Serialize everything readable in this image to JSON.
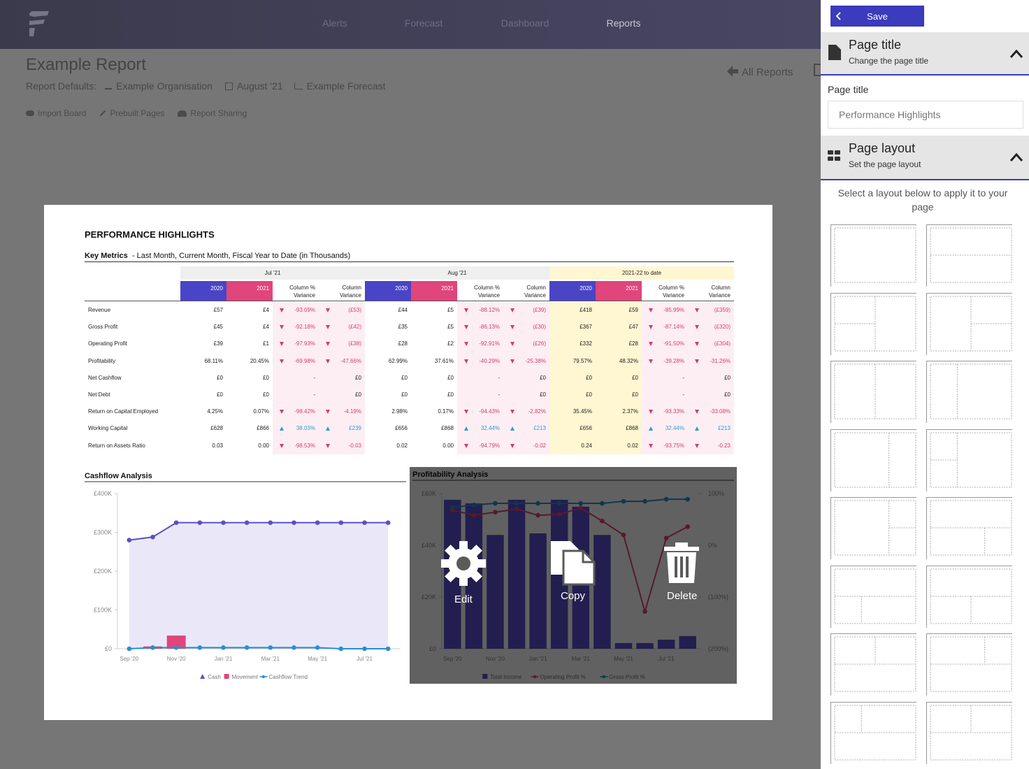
{
  "nav": {
    "items": [
      "Alerts",
      "Forecast",
      "Dashboard",
      "Reports"
    ]
  },
  "header": {
    "title": "Example Report",
    "defaults_label": "Report Defaults:",
    "defaults": [
      "Example Organisation",
      "August '21",
      "Example Forecast"
    ],
    "actions": [
      "Import Board",
      "Prebuilt Pages",
      "Report Sharing"
    ],
    "back": "All Reports"
  },
  "report": {
    "title": "PERFORMANCE HIGHLIGHTS",
    "metrics_title": "Key Metrics",
    "metrics_subtitle": "- Last Month, Current Month, Fiscal Year to Date (in Thousands)",
    "table": {
      "groups": [
        "Jul '21",
        "Aug '21",
        "2021-22 to date"
      ],
      "columns": [
        "2020",
        "2021",
        "Column % Variance",
        "Column Variance"
      ],
      "rows": [
        {
          "label": "Revenue",
          "cells": [
            "£57",
            "£4",
            "-93.09%",
            "(£53)",
            "£44",
            "£5",
            "-88.12%",
            "(£39)",
            "£418",
            "£59",
            "-85.99%",
            "(£359)"
          ]
        },
        {
          "label": "Gross Profit",
          "cells": [
            "£45",
            "£4",
            "-92.18%",
            "(£42)",
            "£35",
            "£5",
            "-86.13%",
            "(£30)",
            "£367",
            "£47",
            "-87.14%",
            "(£320)"
          ]
        },
        {
          "label": "Operating Profit",
          "cells": [
            "£39",
            "£1",
            "-97.93%",
            "(£38)",
            "£28",
            "£2",
            "-92.91%",
            "(£26)",
            "£332",
            "£28",
            "-91.50%",
            "(£304)"
          ]
        },
        {
          "label": "Profitability",
          "cells": [
            "68.11%",
            "20.45%",
            "-69.98%",
            "-47.66%",
            "62.99%",
            "37.61%",
            "-40.29%",
            "-25.38%",
            "79.57%",
            "48.32%",
            "-39.28%",
            "-31.26%"
          ]
        },
        {
          "label": "Net Cashflow",
          "cells": [
            "£0",
            "£0",
            "-",
            "£0",
            "£0",
            "£0",
            "-",
            "£0",
            "£0",
            "£0",
            "-",
            "£0"
          ]
        },
        {
          "label": "Net Debt",
          "cells": [
            "£0",
            "£0",
            "-",
            "£0",
            "£0",
            "£0",
            "-",
            "£0",
            "£0",
            "£0",
            "-",
            "£0"
          ]
        },
        {
          "label": "Return on Capital Employed",
          "cells": [
            "4.25%",
            "0.07%",
            "-98.42%",
            "-4.19%",
            "2.98%",
            "0.17%",
            "-94.43%",
            "-2.82%",
            "35.45%",
            "2.37%",
            "-93.33%",
            "-33.08%"
          ]
        },
        {
          "label": "Working Capital",
          "cells": [
            "£628",
            "£866",
            "38.03%",
            "£239",
            "£656",
            "£868",
            "32.44%",
            "£213",
            "£656",
            "£868",
            "32.44%",
            "£213"
          ]
        },
        {
          "label": "Return on Assets Ratio",
          "cells": [
            "0.03",
            "0.00",
            "-98.53%",
            "-0.03",
            "0.02",
            "0.00",
            "-94.79%",
            "-0.02",
            "0.24",
            "0.02",
            "-93.75%",
            "-0.23"
          ]
        }
      ]
    }
  },
  "chart_data": [
    {
      "type": "combo",
      "title": "Cashflow Analysis",
      "categories": [
        "Sep '20",
        null,
        "Nov '20",
        null,
        "Jan '21",
        null,
        "Mar '21",
        null,
        "May '21",
        null,
        "Jul '21",
        null
      ],
      "ylim": [
        0,
        400000
      ],
      "yticks": [
        {
          "value": 0,
          "label": "£0"
        },
        {
          "value": 100000,
          "label": "£100K"
        },
        {
          "value": 200000,
          "label": "£200K"
        },
        {
          "value": 300000,
          "label": "£300K"
        },
        {
          "value": 400000,
          "label": "£400K"
        }
      ],
      "series": [
        {
          "name": "Cash",
          "type": "area",
          "color": "#5a4fc8",
          "values": [
            280000,
            288000,
            325000,
            325000,
            325000,
            325000,
            325000,
            325000,
            325000,
            325000,
            325000,
            325000
          ]
        },
        {
          "name": "Movement",
          "type": "bar",
          "color": "#e0457b",
          "values": [
            0,
            6000,
            34000,
            0,
            0,
            0,
            0,
            0,
            0,
            0,
            0,
            0
          ]
        },
        {
          "name": "Cashflow Trend",
          "type": "line",
          "color": "#2a8fd0",
          "values": [
            0,
            3000,
            3000,
            3000,
            3000,
            3000,
            3000,
            3000,
            3000,
            0,
            0,
            0
          ]
        }
      ]
    },
    {
      "type": "combo",
      "title": "Profitability Analysis",
      "categories": [
        "Sep '20",
        null,
        "Nov '20",
        null,
        "Jan '21",
        null,
        "Mar '21",
        null,
        "May '21",
        null,
        "Jul '21",
        null
      ],
      "ylim": [
        0,
        60000
      ],
      "yticks": [
        {
          "value": 0,
          "label": "£0"
        },
        {
          "value": 20000,
          "label": "£20K"
        },
        {
          "value": 40000,
          "label": "£40K"
        },
        {
          "value": 60000,
          "label": "£60K"
        }
      ],
      "y2lim": [
        -200,
        100
      ],
      "y2ticks": [
        {
          "value": -200,
          "label": "(200%)"
        },
        {
          "value": -100,
          "label": "(100%)"
        },
        {
          "value": 0,
          "label": "0%"
        },
        {
          "value": 100,
          "label": "100%"
        }
      ],
      "series": [
        {
          "name": "Total Income",
          "type": "bar",
          "color": "#5a4fd0",
          "values": [
            57600,
            56200,
            44000,
            57600,
            44600,
            57600,
            54900,
            44000,
            2200,
            2200,
            3500,
            4900
          ]
        },
        {
          "name": "Operating Profit %",
          "type": "line",
          "axis": "y2",
          "color": "#e0457b",
          "values": [
            68,
            58,
            64,
            70,
            58,
            60,
            72,
            47,
            20,
            -128,
            14,
            36
          ]
        },
        {
          "name": "Gross Profit %",
          "type": "line",
          "axis": "y2",
          "color": "#2a8fd0",
          "values": [
            73,
            78,
            81,
            81,
            81,
            81,
            81,
            81,
            85,
            85,
            89,
            89
          ]
        }
      ]
    }
  ],
  "overlay": {
    "actions": [
      "Edit",
      "Copy",
      "Delete"
    ]
  },
  "sidebar": {
    "save": "Save",
    "sections": [
      {
        "title": "Page title",
        "subtitle": "Change the page title"
      },
      {
        "title": "Page layout",
        "subtitle": "Set the page layout"
      }
    ],
    "field_label": "Page title",
    "field_value": "Performance Highlights",
    "layout_hint": "Select a layout below to apply it to your page"
  }
}
